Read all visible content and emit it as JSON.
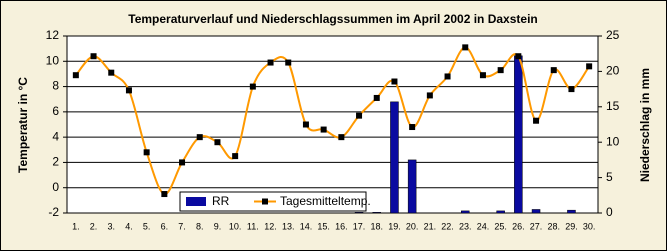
{
  "chart_data": {
    "type": "bar_line",
    "title": "Temperaturverlauf und Niederschlagssummen im April 2002 in Daxstein",
    "y_label": "Temperatur in °C",
    "y2_label": "Niederschlag in mm",
    "categories": [
      "1.",
      "2.",
      "3.",
      "4.",
      "5.",
      "6.",
      "7.",
      "8.",
      "9.",
      "10.",
      "11.",
      "12.",
      "13.",
      "14.",
      "15.",
      "16.",
      "17.",
      "18.",
      "19.",
      "20.",
      "21.",
      "22.",
      "23.",
      "24.",
      "25.",
      "26.",
      "27.",
      "28.",
      "29.",
      "30."
    ],
    "series": [
      {
        "name": "RR",
        "type": "bar",
        "axis": "y2",
        "color": "#0a0aa0",
        "values": [
          0,
          0,
          0,
          0,
          0,
          0,
          0,
          0,
          0,
          0,
          0,
          0,
          0,
          0,
          0,
          0,
          0.1,
          0.1,
          15.7,
          7.5,
          0,
          0,
          0.3,
          0,
          0.3,
          22.2,
          0.5,
          0,
          0.4,
          0
        ]
      },
      {
        "name": "Tagesmitteltemp.",
        "type": "line",
        "axis": "y",
        "color": "#ff9900",
        "values": [
          8.9,
          10.4,
          9.1,
          7.7,
          2.8,
          -0.5,
          2.0,
          4.0,
          3.6,
          2.5,
          8.0,
          9.9,
          9.9,
          5.0,
          4.6,
          4.0,
          5.7,
          7.1,
          8.4,
          4.8,
          7.3,
          8.8,
          11.1,
          8.9,
          9.3,
          10.4,
          5.3,
          9.3,
          7.8,
          9.6
        ]
      }
    ],
    "ylim": [
      -2,
      12
    ],
    "yticks": [
      -2,
      0,
      2,
      4,
      6,
      8,
      10,
      12
    ],
    "y2lim": [
      0,
      25
    ],
    "y2ticks": [
      0,
      5,
      10,
      15,
      20,
      25
    ],
    "grid": true
  }
}
